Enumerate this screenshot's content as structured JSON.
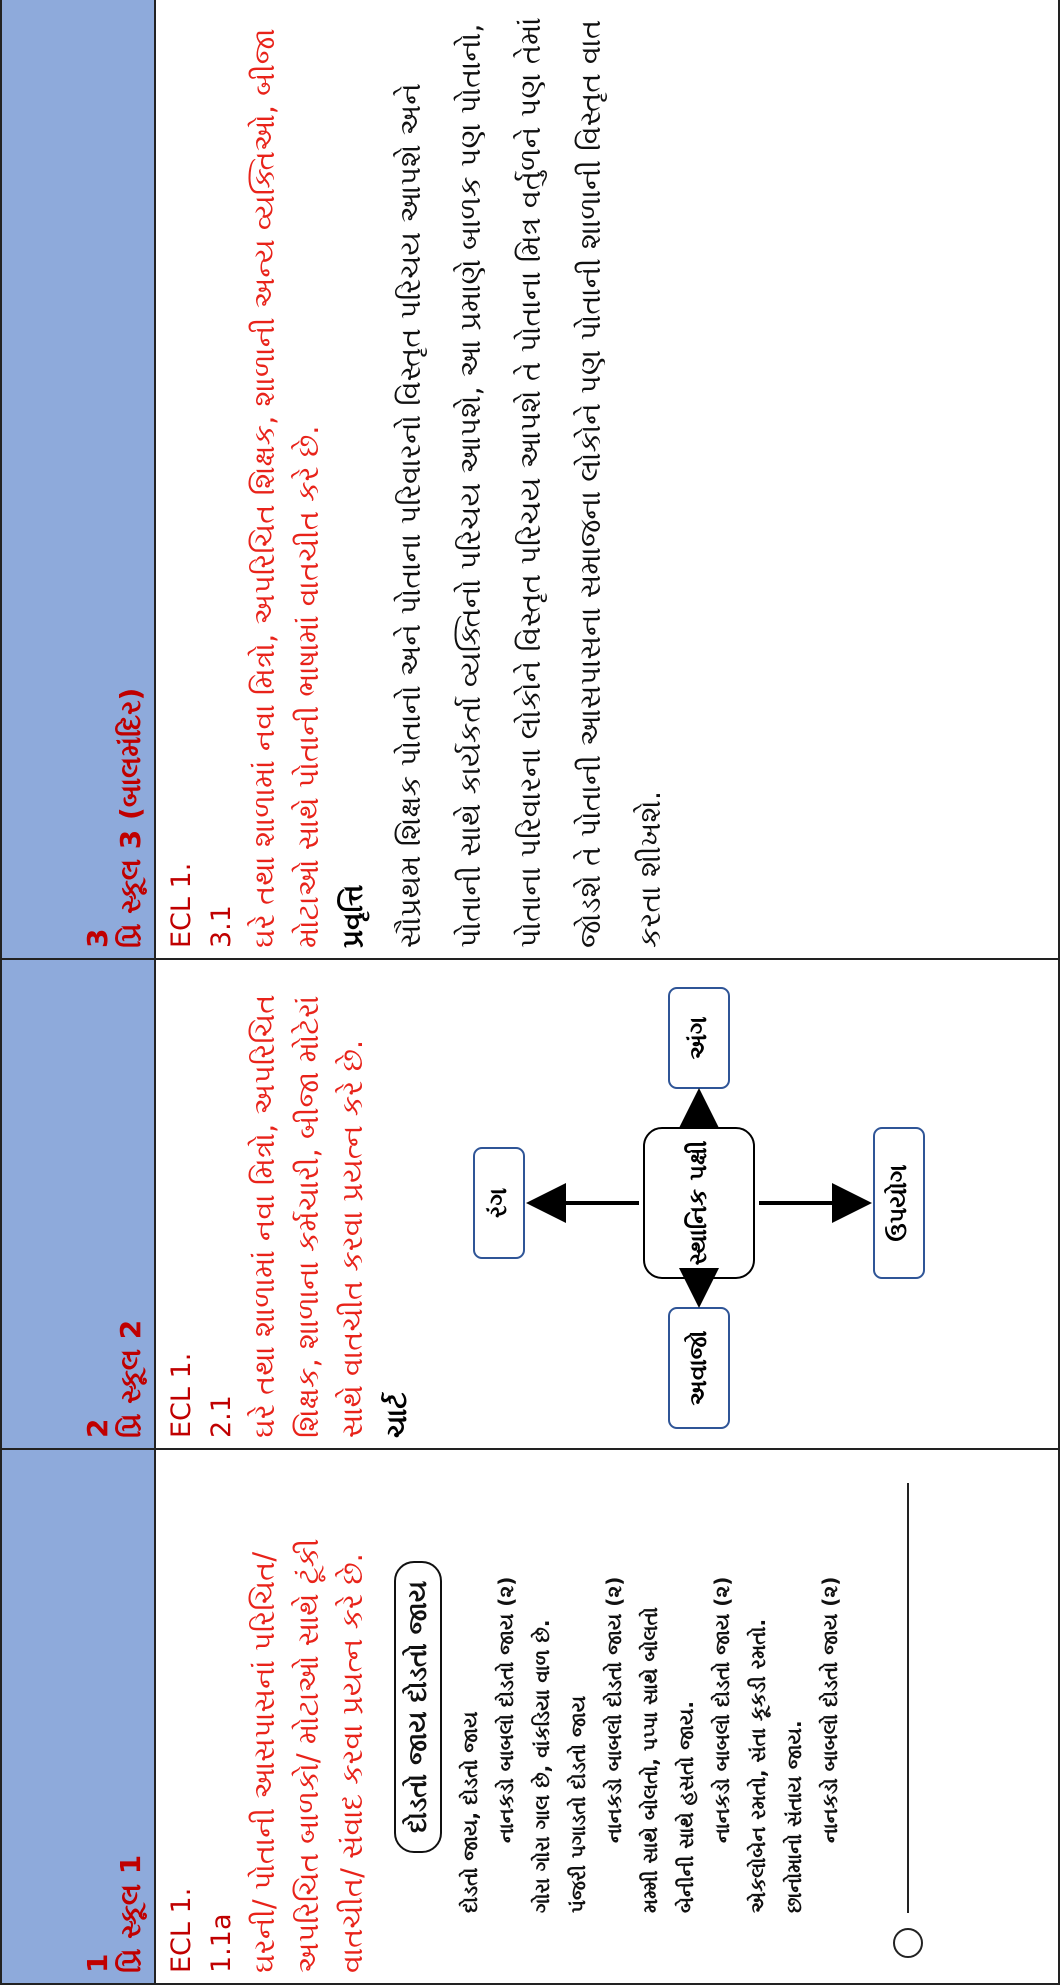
{
  "header": [
    {
      "number": "1",
      "title": "પ્રિ સ્કૂલ 1"
    },
    {
      "number": "2",
      "title": "પ્રિ સ્કૂલ 2"
    },
    {
      "number": "3",
      "title": "પ્રિ સ્કૂલ 3 (બાલમંદિર)"
    }
  ],
  "cells": [
    {
      "code": "ECL 1.",
      "subcode": "1.1a",
      "outcome": "ઘરની/ પોતાની આસપાસનાં પરિચિત/ અપરિચિત બાળકો/ મોટાઓ સાથે ટૂંકી વાતચીત/ સંવાદ કરવા પ્રયત્ન કરે છે.",
      "poem": {
        "title": "દોડતો જાય દોડતો જાય",
        "lines": [
          "દોડતો જાય, દોડતો જાય",
          "નાનકડો બાબલો દોડતો જાય (૨)",
          "ગોરા ગોરા ગાલ છે, વાંકડિયા વાળ છે.",
          "પંજરી પગાડતો દોડતો જાય",
          "નાનકડો બાબલો દોડતો જાય (૨)",
          "મમ્મી સાથે બોલતો, પપ્પા સાથે બોલતો",
          "બેનીની સાથે હસતો જાય.",
          "નાનકડો બાબલો દોડતો જાય (૨)",
          "એકલોબેન રમતો, સંતા કૂકડી રમતો.",
          "છાનોમાનો સંતાય જાય.",
          "નાનકડો બાબલો દોડતો જાય (૨)"
        ]
      }
    },
    {
      "code": "ECL 1.",
      "subcode": "2.1",
      "outcome": "ઘરે તથા શાળામાં નવા મિત્રો, અપરિચિત શિક્ષક, શાળાના કર્મચારી, બીજા મોટેરાં સાથે વાતચીત કરવા પ્રયત્ન કરે છે.",
      "label": "ચાર્ટ",
      "diagram": {
        "center": "સ્થાનિક પક્ષી",
        "top": "રંગ",
        "right": "અંગ",
        "bottom": "ઉપયોગ",
        "left": "અવાજો"
      }
    },
    {
      "code": "ECL 1.",
      "subcode": "3.1",
      "outcome": "ઘરે તથા શાળામાં નવા મિત્રો, અપરિચિત શિક્ષક, શાળાની અન્ય વ્યક્તિઓ, બીજા મોટાઓ સાથે પોતાની ભાષામાં વાતચીત કરે છે.",
      "label": "પ્રવૃત્તિ",
      "text": "સૌપ્રથમ શિક્ષક પોતાનો અને પોતાના પરિવારનો વિસ્તૃત પરિચય આપશે અને પોતાની સાથે કાર્યકર્તા વ્યક્તિનો પરિચય આપશે, આ પ્રમાણે બાળક પણ પોતાનો, પોતાના પરિવારના લોકોને વિસ્તૃત પરિચય આપશે તે પોતાના મિત્ર વર્તુળને પણ તેમાં જોડશે તે પોતાની આસપાસના સમાજના લોકોને પણ પોતાની શાળાની વિસ્તૃત વાત કરતા શીખશે."
    }
  ]
}
